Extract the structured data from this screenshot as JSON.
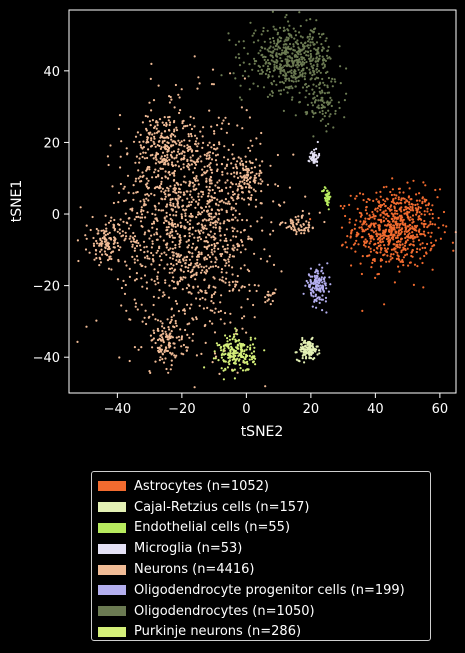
{
  "chart_data": {
    "type": "scatter",
    "title": "",
    "xlabel": "tSNE2",
    "ylabel": "tSNE1",
    "xlim": [
      -55,
      65
    ],
    "ylim": [
      -50,
      57
    ],
    "xticks": [
      -40,
      -20,
      0,
      20,
      40,
      60
    ],
    "yticks": [
      -40,
      -20,
      0,
      20,
      40
    ],
    "grid": false,
    "legend_position": "below",
    "series": [
      {
        "name": "Astrocytes (n=1052)",
        "color": "#f26b2f",
        "clusters": [
          {
            "cx": 46,
            "cy": -4,
            "sx": 6.5,
            "sy": 5.5,
            "n": 700
          }
        ]
      },
      {
        "name": "Cajal-Retzius cells (n=157)",
        "color": "#e3f0b4",
        "clusters": [
          {
            "cx": 19,
            "cy": -38,
            "sx": 1.6,
            "sy": 1.4,
            "n": 120
          }
        ]
      },
      {
        "name": "Endothelial cells (n=55)",
        "color": "#b7ea5e",
        "clusters": [
          {
            "cx": 25,
            "cy": 5,
            "sx": 0.6,
            "sy": 1.4,
            "n": 40
          }
        ]
      },
      {
        "name": "Microglia (n=53)",
        "color": "#e4e1f5",
        "clusters": [
          {
            "cx": 21,
            "cy": 16,
            "sx": 0.7,
            "sy": 1.2,
            "n": 40
          }
        ]
      },
      {
        "name": "Neurons (n=4416)",
        "color": "#f0bb96",
        "clusters": [
          {
            "cx": -17,
            "cy": -2,
            "sx": 11,
            "sy": 16,
            "n": 1300
          },
          {
            "cx": -26,
            "cy": 18,
            "sx": 4,
            "sy": 5,
            "n": 180
          },
          {
            "cx": -43,
            "cy": -8,
            "sx": 3,
            "sy": 3,
            "n": 120
          },
          {
            "cx": -25,
            "cy": -36,
            "sx": 3,
            "sy": 3,
            "n": 100
          },
          {
            "cx": 0,
            "cy": 10,
            "sx": 4,
            "sy": 3,
            "n": 100
          },
          {
            "cx": 17,
            "cy": -3,
            "sx": 3,
            "sy": 1.5,
            "n": 60
          },
          {
            "cx": 7,
            "cy": -23,
            "sx": 1,
            "sy": 1,
            "n": 15
          }
        ]
      },
      {
        "name": "Oligodendrocyte progenitor cells (n=199)",
        "color": "#b3aeee",
        "clusters": [
          {
            "cx": 22,
            "cy": -20,
            "sx": 1.7,
            "sy": 2.2,
            "n": 140
          }
        ]
      },
      {
        "name": "Oligodendrocytes (n=1050)",
        "color": "#6b7a52",
        "clusters": [
          {
            "cx": 14,
            "cy": 43,
            "sx": 6.5,
            "sy": 4.5,
            "n": 550
          },
          {
            "cx": 24,
            "cy": 31,
            "sx": 2.5,
            "sy": 3.5,
            "n": 80
          }
        ]
      },
      {
        "name": "Purkinje neurons (n=286)",
        "color": "#d4ef79",
        "clusters": [
          {
            "cx": -3,
            "cy": -39,
            "sx": 2.8,
            "sy": 2.6,
            "n": 200
          }
        ]
      }
    ]
  }
}
